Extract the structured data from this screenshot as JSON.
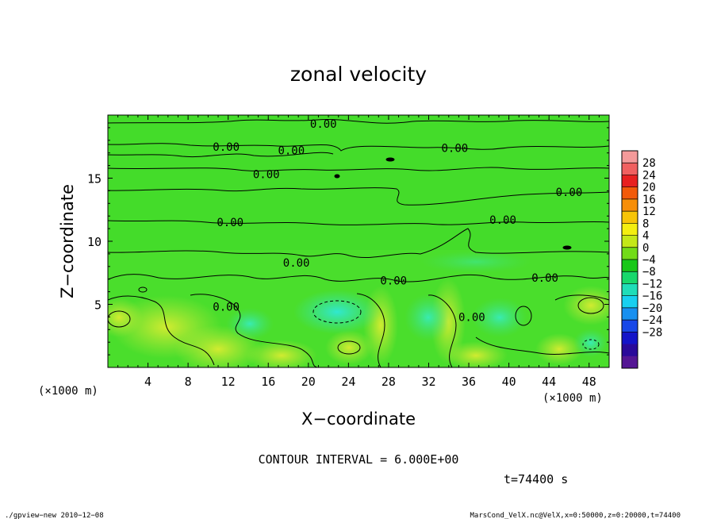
{
  "chart_data": {
    "type": "contour",
    "title": "zonal velocity",
    "xlabel": "X−coordinate",
    "ylabel": "Z−coordinate",
    "x_unit": "(×1000 m)",
    "y_unit": "(×1000 m)",
    "xlim": [
      0,
      50
    ],
    "ylim": [
      0,
      20
    ],
    "x_ticks": [
      4,
      8,
      12,
      16,
      20,
      24,
      28,
      32,
      36,
      40,
      44,
      48
    ],
    "x_tick_labels": [
      "4",
      "8",
      "12",
      "16",
      "20",
      "24",
      "28",
      "32",
      "36",
      "40",
      "44",
      "48"
    ],
    "y_ticks": [
      5,
      10,
      15
    ],
    "y_tick_labels": [
      "5",
      "10",
      "15"
    ],
    "contour_interval_text": "CONTOUR INTERVAL = 6.000E+00",
    "time_text": "t=74400 s",
    "contour_labels": [
      {
        "text": "0.00",
        "x": 21.5,
        "y": 19.3
      },
      {
        "text": "0.00",
        "x": 18.3,
        "y": 17.2
      },
      {
        "text": "0.00",
        "x": 11.8,
        "y": 17.5
      },
      {
        "text": "0.00",
        "x": 34.6,
        "y": 17.4
      },
      {
        "text": "0.00",
        "x": 15.8,
        "y": 15.3
      },
      {
        "text": "0.00",
        "x": 46.0,
        "y": 13.9
      },
      {
        "text": "0.00",
        "x": 12.2,
        "y": 11.5
      },
      {
        "text": "0.00",
        "x": 39.4,
        "y": 11.7
      },
      {
        "text": "0.00",
        "x": 18.8,
        "y": 8.3
      },
      {
        "text": "0.00",
        "x": 28.5,
        "y": 6.9
      },
      {
        "text": "0.00",
        "x": 43.6,
        "y": 7.1
      },
      {
        "text": "0.00",
        "x": 11.8,
        "y": 4.8
      },
      {
        "text": "0.00",
        "x": 36.3,
        "y": 4.0
      }
    ],
    "colorbar": {
      "labels": [
        "28",
        "24",
        "20",
        "16",
        "12",
        "8",
        "4",
        "0",
        "−4",
        "−8",
        "−12",
        "−16",
        "−20",
        "−24",
        "−28"
      ],
      "colors": [
        "#f49a9a",
        "#f06060",
        "#e82020",
        "#f25a0a",
        "#f78e08",
        "#f7c406",
        "#f4ee10",
        "#c4e818",
        "#72dc18",
        "#18c818",
        "#18d86c",
        "#20ddb8",
        "#18d0f0",
        "#1890f0",
        "#1848e8",
        "#1414c8",
        "#2a0a9a",
        "#541694"
      ]
    }
  },
  "footer": {
    "left": "./gpview−new   2010−12−08",
    "right": "MarsCond_VelX.nc@VelX,x=0:50000,z=0:20000,t=74400"
  }
}
